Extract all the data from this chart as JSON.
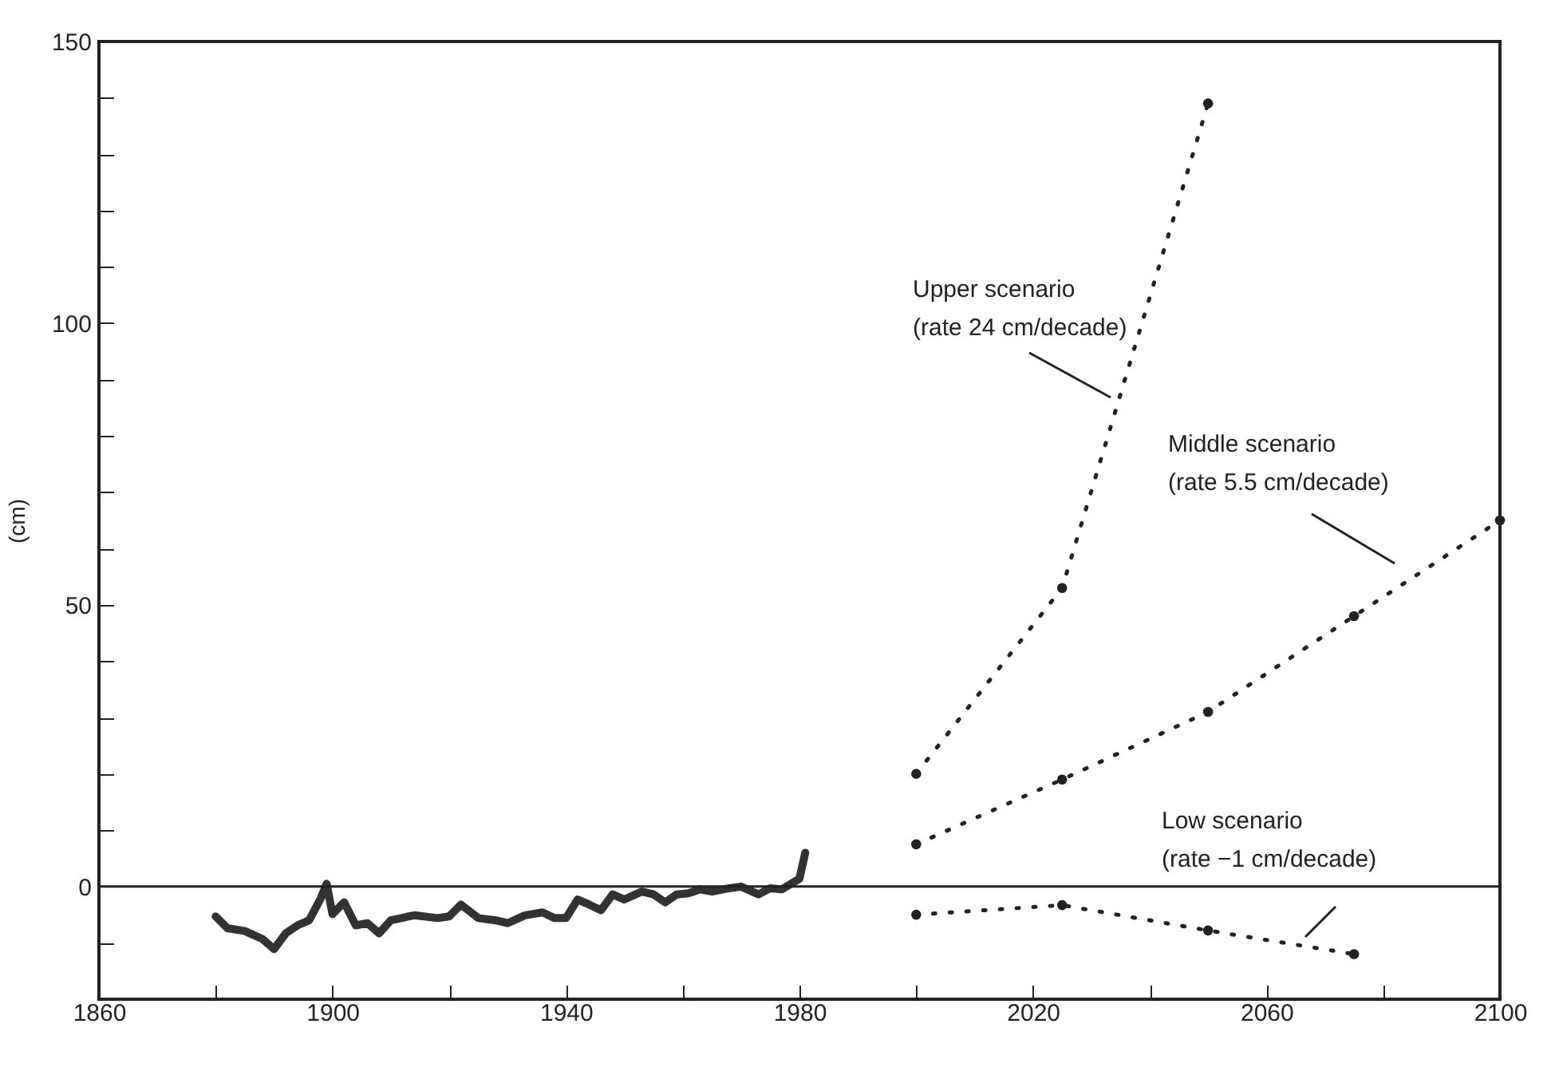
{
  "chart_data": {
    "type": "line",
    "ylabel": "(cm)",
    "xlim": [
      1860,
      2100
    ],
    "xticks": [
      1860,
      {
        "value": 1880,
        "label": null
      },
      1900,
      {
        "value": 1920,
        "label": null
      },
      1940,
      {
        "value": 1960,
        "label": null
      },
      1980,
      {
        "value": 2000,
        "label": null
      },
      2020,
      {
        "value": 2040,
        "label": null
      },
      2060,
      {
        "value": 2080,
        "label": null
      },
      2100
    ],
    "ylim": [
      -20,
      150
    ],
    "yticks": [
      {
        "value": -10,
        "label": null
      },
      0,
      {
        "value": 10,
        "label": null
      },
      {
        "value": 20,
        "label": null
      },
      {
        "value": 30,
        "label": null
      },
      {
        "value": 40,
        "label": null
      },
      50,
      {
        "value": 60,
        "label": null
      },
      {
        "value": 70,
        "label": null
      },
      {
        "value": 80,
        "label": null
      },
      {
        "value": 90,
        "label": null
      },
      100,
      {
        "value": 110,
        "label": null
      },
      {
        "value": 120,
        "label": null
      },
      {
        "value": 130,
        "label": null
      },
      {
        "value": 140,
        "label": null
      },
      150
    ],
    "grid": false,
    "marker": "circle",
    "line_style": "dotted",
    "series": [
      {
        "color": "#333333",
        "marker": "none",
        "line_style": "solid",
        "x": [
          1880,
          1882,
          1885,
          1888,
          1890,
          1892,
          1894,
          1896,
          1898,
          1899,
          1900,
          1902,
          1904,
          1906,
          1908,
          1910,
          1914,
          1918,
          1920,
          1922,
          1925,
          1928,
          1930,
          1933,
          1936,
          1938,
          1940,
          1942,
          1944,
          1946,
          1948,
          1950,
          1953,
          1955,
          1957,
          1959,
          1961,
          1963,
          1965,
          1968,
          1970,
          1973,
          1975,
          1977,
          1980,
          1981
        ],
        "values": [
          -5.3,
          -7.4,
          -7.9,
          -9.3,
          -11.1,
          -8.3,
          -6.9,
          -6,
          -2.1,
          0.5,
          -4.9,
          -2.8,
          -6.9,
          -6.5,
          -8.3,
          -6,
          -5.1,
          -5.6,
          -5.3,
          -3.2,
          -5.6,
          -6,
          -6.5,
          -5.1,
          -4.6,
          -5.6,
          -5.6,
          -2.3,
          -3.2,
          -4.2,
          -1.4,
          -2.3,
          -0.9,
          -1.4,
          -2.8,
          -1.4,
          -1.2,
          -0.5,
          -0.9,
          -0.3,
          0,
          -1.4,
          -0.3,
          -0.5,
          1.4,
          6
        ]
      },
      {
        "color": "#222222",
        "x": [
          2000,
          2025,
          2050
        ],
        "values": [
          20,
          53,
          139
        ]
      },
      {
        "color": "#222222",
        "x": [
          2000,
          2025,
          2050,
          2075,
          2100
        ],
        "values": [
          7.5,
          19,
          31,
          48,
          65
        ]
      },
      {
        "color": "#222222",
        "x": [
          2000,
          2025,
          2050,
          2075
        ],
        "values": [
          -5,
          -3.3,
          -7.8,
          -12
        ]
      }
    ],
    "ref_lines": [
      {
        "axis": "y",
        "value": 0,
        "color": "#222222"
      }
    ],
    "annotations": [
      "Upper scenario\n(rate 24 cm/decade)",
      "Middle scenario\n(rate 5.5 cm/decade)",
      "Low scenario\n(rate −1 cm/decade)"
    ]
  }
}
